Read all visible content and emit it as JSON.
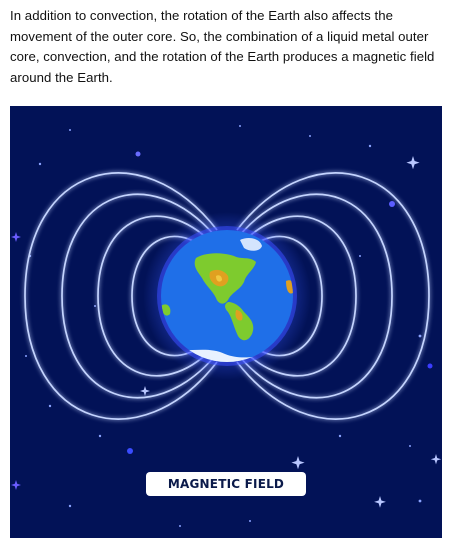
{
  "article": {
    "paragraph": "In addition to convection, the rotation of the Earth also affects the movement of the outer core. So, the combination of a liquid metal outer core, convection, and the rotation of the Earth produces a magnetic field around the Earth."
  },
  "figure": {
    "label": "MAGNETIC FIELD",
    "colors": {
      "background": "#021257",
      "field_lines": "#bcd0ff",
      "field_glow": "#3a5cff",
      "ocean": "#1f6fe8",
      "land": "#7ecb2e",
      "ice": "#e8f1ff"
    },
    "icons": [
      "star-icon",
      "earth-illustration"
    ]
  }
}
